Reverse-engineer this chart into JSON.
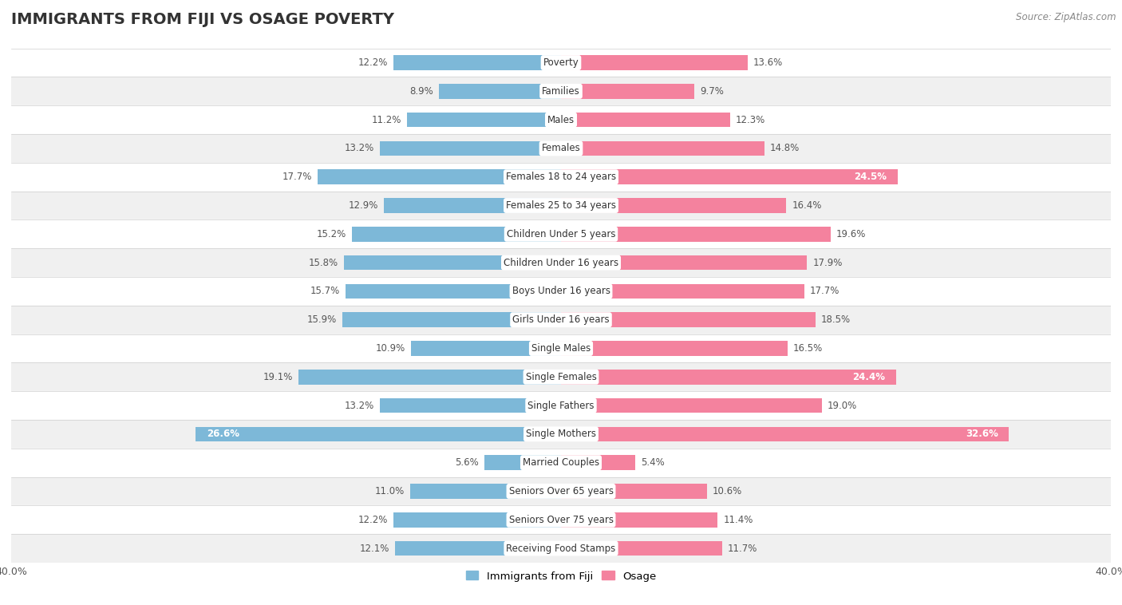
{
  "title": "IMMIGRANTS FROM FIJI VS OSAGE POVERTY",
  "source": "Source: ZipAtlas.com",
  "categories": [
    "Poverty",
    "Families",
    "Males",
    "Females",
    "Females 18 to 24 years",
    "Females 25 to 34 years",
    "Children Under 5 years",
    "Children Under 16 years",
    "Boys Under 16 years",
    "Girls Under 16 years",
    "Single Males",
    "Single Females",
    "Single Fathers",
    "Single Mothers",
    "Married Couples",
    "Seniors Over 65 years",
    "Seniors Over 75 years",
    "Receiving Food Stamps"
  ],
  "fiji_values": [
    12.2,
    8.9,
    11.2,
    13.2,
    17.7,
    12.9,
    15.2,
    15.8,
    15.7,
    15.9,
    10.9,
    19.1,
    13.2,
    26.6,
    5.6,
    11.0,
    12.2,
    12.1
  ],
  "osage_values": [
    13.6,
    9.7,
    12.3,
    14.8,
    24.5,
    16.4,
    19.6,
    17.9,
    17.7,
    18.5,
    16.5,
    24.4,
    19.0,
    32.6,
    5.4,
    10.6,
    11.4,
    11.7
  ],
  "fiji_color": "#7db8d8",
  "osage_color": "#f4829e",
  "fiji_label": "Immigrants from Fiji",
  "osage_label": "Osage",
  "xlim": 40.0,
  "bg_color": "#ffffff",
  "row_alt_color": "#f0f0f0",
  "row_main_color": "#ffffff",
  "title_fontsize": 14,
  "label_fontsize": 8.5,
  "value_fontsize": 8.5,
  "bar_height": 0.52,
  "highlight_osage": [
    "Females 18 to 24 years",
    "Single Females",
    "Single Mothers"
  ],
  "highlight_fiji": [
    "Single Mothers"
  ]
}
